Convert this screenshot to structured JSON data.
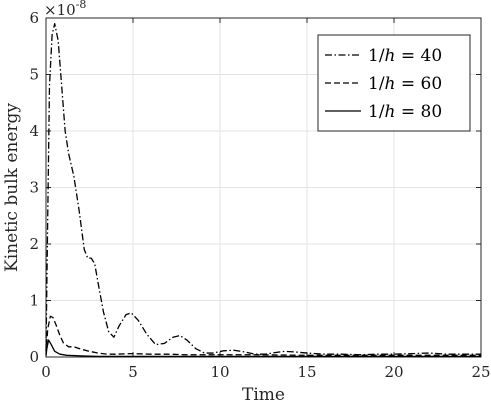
{
  "chart_data": {
    "type": "line",
    "xlabel": "Time",
    "ylabel": "Kinetic bulk energy",
    "xlim": [
      0,
      25
    ],
    "ylim": [
      0,
      6
    ],
    "x_ticks": [
      0,
      5,
      10,
      15,
      20,
      25
    ],
    "y_ticks": [
      0,
      1,
      2,
      3,
      4,
      5,
      6
    ],
    "y_exponent_label": "×10",
    "y_exponent_power": "-8",
    "grid": true,
    "legend_position": "top-right",
    "series": [
      {
        "name": "1/h = 40",
        "legend_prefix": "1/",
        "legend_var": "h",
        "legend_suffix": " = 40",
        "style": "dashdot",
        "points": [
          [
            0,
            0.1
          ],
          [
            0.1,
            2.5
          ],
          [
            0.2,
            4.8
          ],
          [
            0.35,
            5.7
          ],
          [
            0.5,
            5.9
          ],
          [
            0.7,
            5.6
          ],
          [
            0.9,
            4.8
          ],
          [
            1.1,
            4.0
          ],
          [
            1.3,
            3.6
          ],
          [
            1.6,
            3.2
          ],
          [
            1.9,
            2.6
          ],
          [
            2.2,
            1.9
          ],
          [
            2.4,
            1.75
          ],
          [
            2.6,
            1.75
          ],
          [
            2.8,
            1.65
          ],
          [
            3.0,
            1.3
          ],
          [
            3.3,
            0.8
          ],
          [
            3.6,
            0.45
          ],
          [
            3.9,
            0.35
          ],
          [
            4.2,
            0.55
          ],
          [
            4.6,
            0.75
          ],
          [
            4.9,
            0.78
          ],
          [
            5.3,
            0.65
          ],
          [
            5.8,
            0.4
          ],
          [
            6.3,
            0.22
          ],
          [
            6.8,
            0.24
          ],
          [
            7.3,
            0.35
          ],
          [
            7.7,
            0.38
          ],
          [
            8.1,
            0.3
          ],
          [
            8.6,
            0.15
          ],
          [
            9.1,
            0.07
          ],
          [
            9.6,
            0.07
          ],
          [
            10.2,
            0.11
          ],
          [
            10.8,
            0.12
          ],
          [
            11.4,
            0.09
          ],
          [
            12.0,
            0.05
          ],
          [
            12.6,
            0.05
          ],
          [
            13.2,
            0.08
          ],
          [
            13.7,
            0.1
          ],
          [
            14.3,
            0.09
          ],
          [
            15.0,
            0.07
          ],
          [
            16.0,
            0.05
          ],
          [
            17.0,
            0.05
          ],
          [
            18.0,
            0.04
          ],
          [
            19.0,
            0.05
          ],
          [
            20.0,
            0.05
          ],
          [
            21.0,
            0.06
          ],
          [
            22.0,
            0.07
          ],
          [
            23.0,
            0.05
          ],
          [
            24.0,
            0.05
          ],
          [
            25.0,
            0.05
          ]
        ]
      },
      {
        "name": "1/h = 60",
        "legend_prefix": "1/",
        "legend_var": "h",
        "legend_suffix": " = 60",
        "style": "dashed",
        "points": [
          [
            0,
            0.05
          ],
          [
            0.1,
            0.5
          ],
          [
            0.25,
            0.72
          ],
          [
            0.4,
            0.7
          ],
          [
            0.6,
            0.55
          ],
          [
            0.8,
            0.38
          ],
          [
            1.0,
            0.25
          ],
          [
            1.3,
            0.18
          ],
          [
            1.6,
            0.18
          ],
          [
            2.0,
            0.14
          ],
          [
            2.5,
            0.1
          ],
          [
            3.0,
            0.07
          ],
          [
            3.5,
            0.05
          ],
          [
            4.0,
            0.05
          ],
          [
            5.0,
            0.06
          ],
          [
            6.0,
            0.05
          ],
          [
            7.0,
            0.05
          ],
          [
            8.0,
            0.04
          ],
          [
            10.0,
            0.04
          ],
          [
            12.0,
            0.04
          ],
          [
            15.0,
            0.03
          ],
          [
            20.0,
            0.03
          ],
          [
            25.0,
            0.03
          ]
        ]
      },
      {
        "name": "1/h = 80",
        "legend_prefix": "1/",
        "legend_var": "h",
        "legend_suffix": " = 80",
        "style": "solid",
        "points": [
          [
            0,
            0.02
          ],
          [
            0.05,
            0.15
          ],
          [
            0.15,
            0.3
          ],
          [
            0.3,
            0.22
          ],
          [
            0.5,
            0.1
          ],
          [
            0.8,
            0.05
          ],
          [
            1.2,
            0.03
          ],
          [
            2.0,
            0.02
          ],
          [
            3.0,
            0.01
          ],
          [
            5.0,
            0.01
          ],
          [
            10.0,
            0.01
          ],
          [
            15.0,
            0.01
          ],
          [
            20.0,
            0.01
          ],
          [
            25.0,
            0.01
          ]
        ]
      }
    ]
  }
}
